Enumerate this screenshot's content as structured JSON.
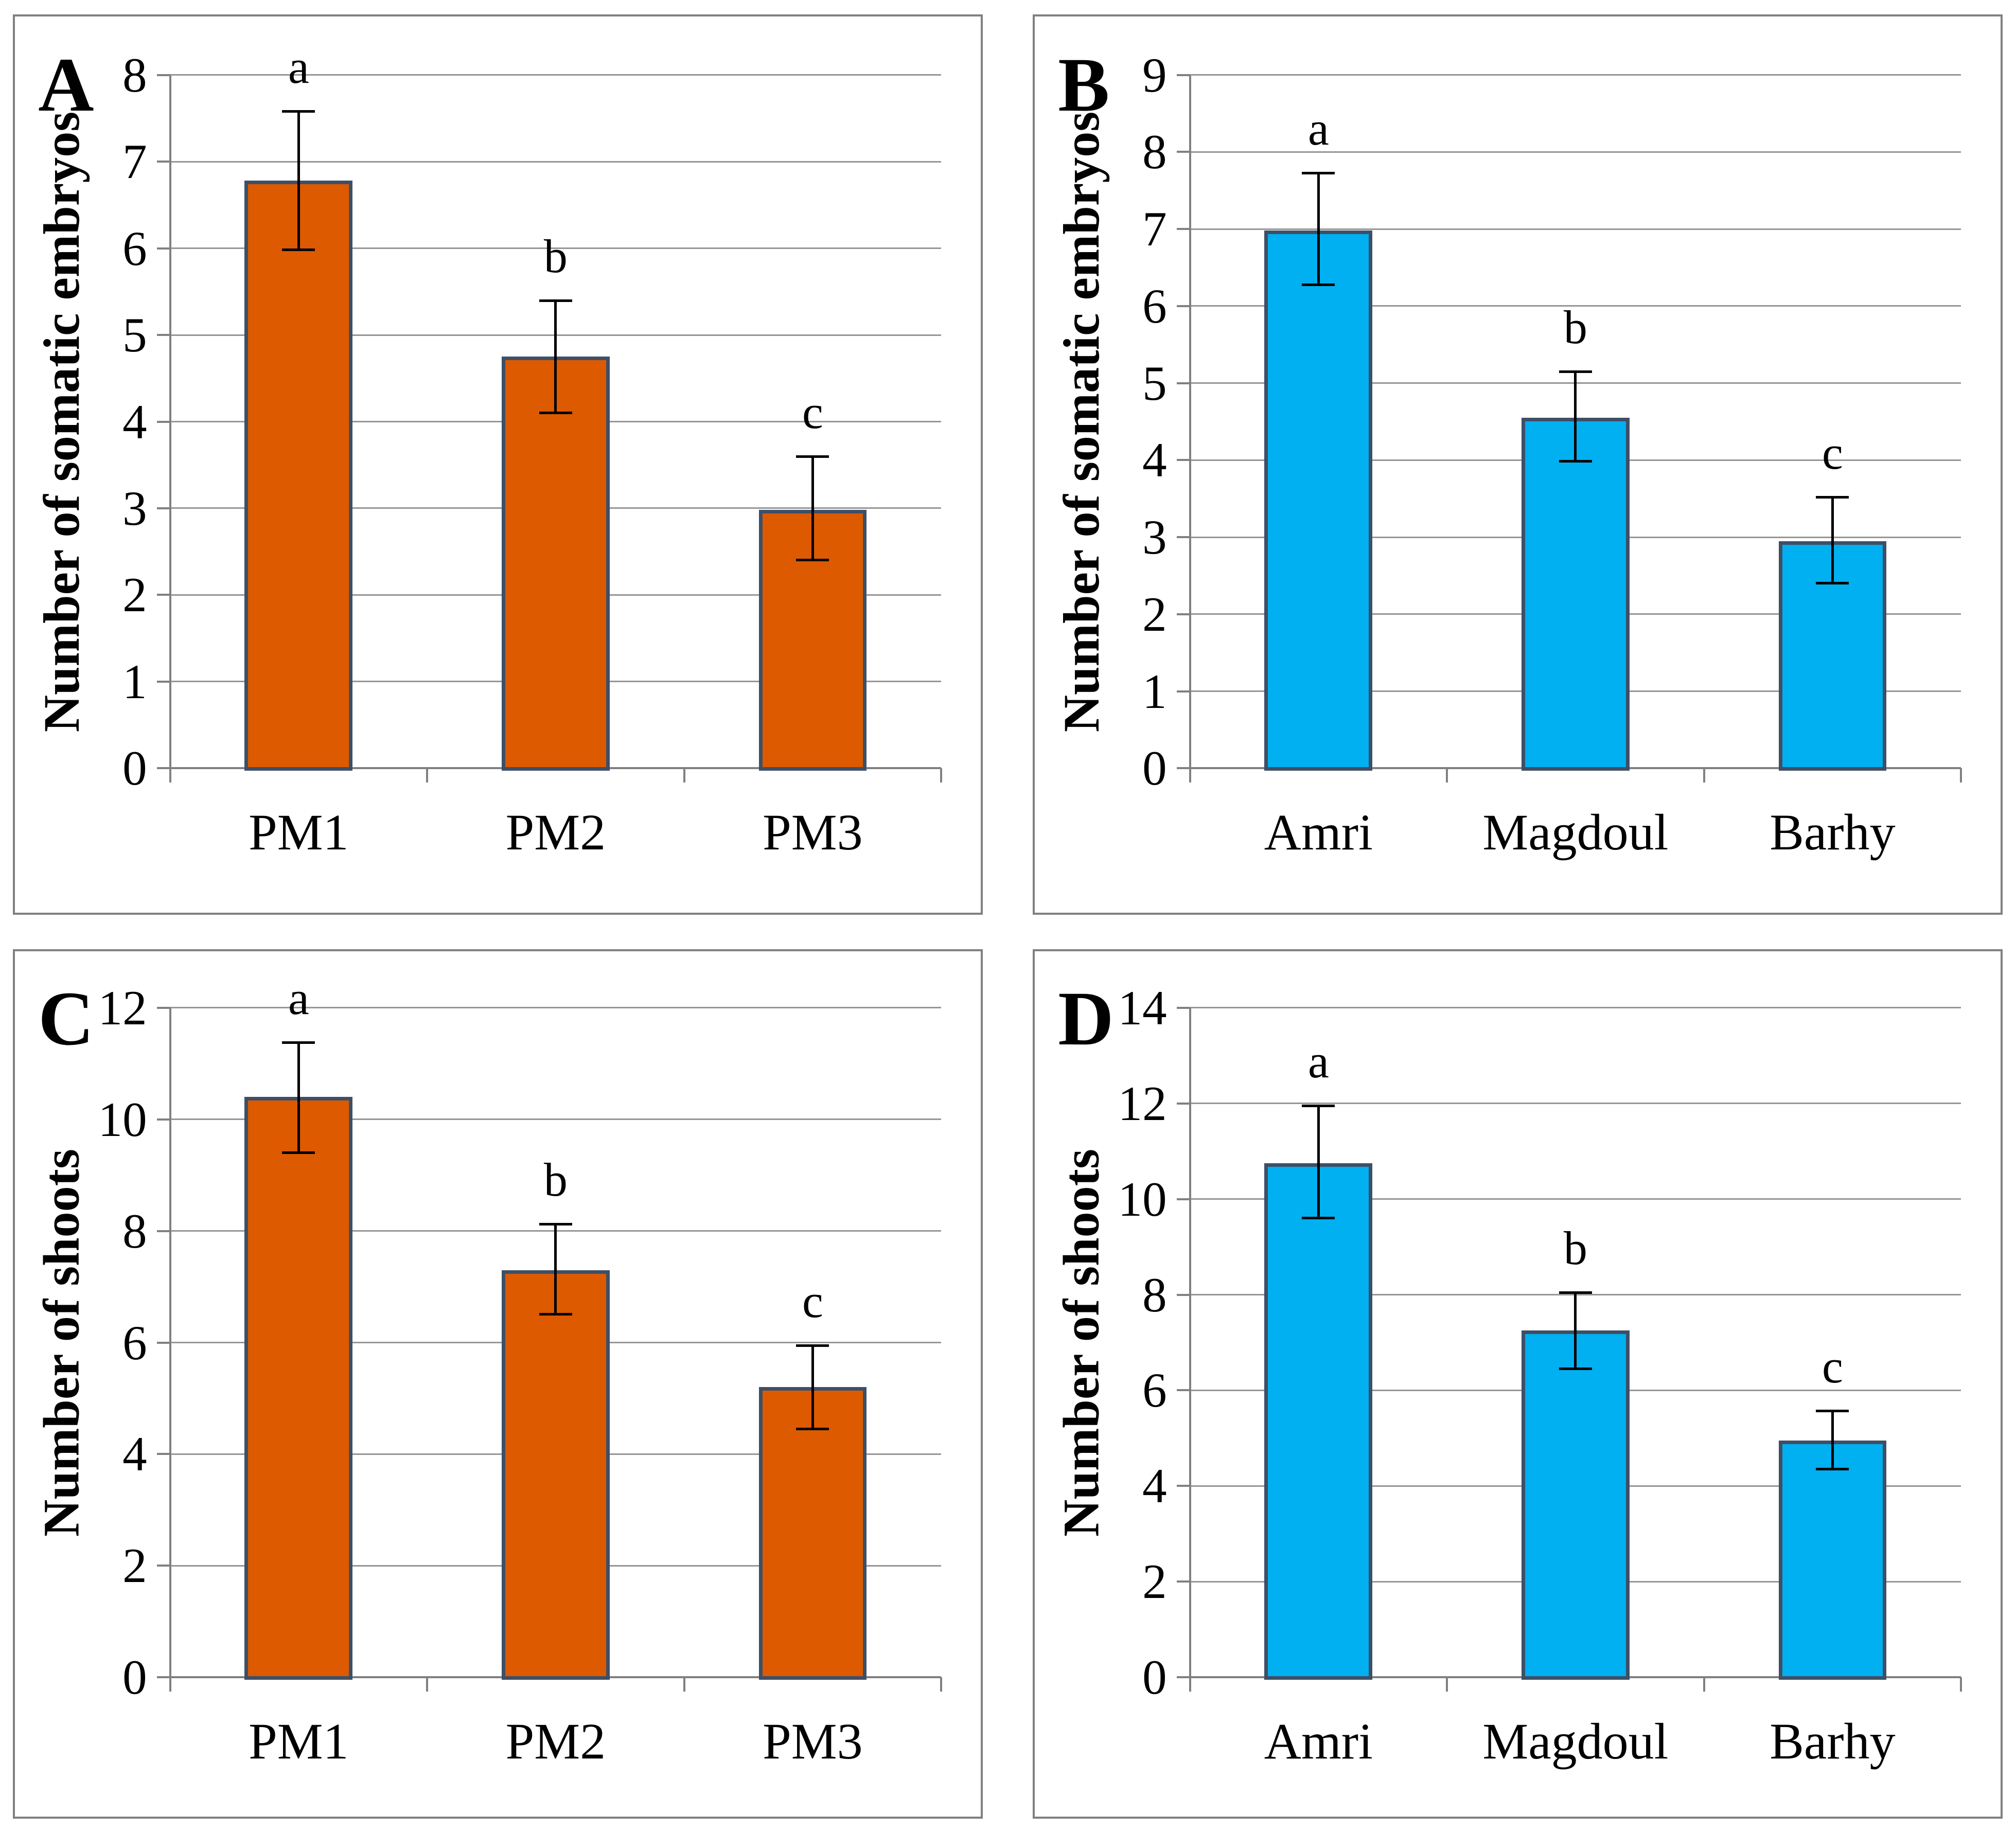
{
  "figure": {
    "description": "Four-panel bar chart figure with panels A, B, C, D",
    "background": "#FFFFFF",
    "panel_border_color": "#808080",
    "grid_color": "#969696",
    "axis_color": "#808080",
    "bar_border_color": "#3E4F66",
    "error_bar_color": "#000000",
    "text_color": "#000000",
    "orange": "#DD5A00",
    "blue": "#00B0F0"
  },
  "chart_data": [
    {
      "type": "bar",
      "panel": "A",
      "title": "",
      "xlabel": "",
      "ylabel": "Number of somatic embryos",
      "categories": [
        "PM1",
        "PM2",
        "PM3"
      ],
      "values": [
        6.78,
        4.75,
        2.98
      ],
      "error_low": [
        5.98,
        4.1,
        2.4
      ],
      "error_high": [
        7.58,
        5.4,
        3.6
      ],
      "sig_letters": [
        "a",
        "b",
        "c"
      ],
      "ylim": [
        0,
        8
      ],
      "yticks": [
        0,
        1,
        2,
        3,
        4,
        5,
        6,
        7,
        8
      ],
      "bar_color": "#DD5A00",
      "grid": true,
      "legend": "none"
    },
    {
      "type": "bar",
      "panel": "B",
      "title": "",
      "xlabel": "",
      "ylabel": "Number of somatic embryos",
      "categories": [
        "Amri",
        "Magdoul",
        "Barhy"
      ],
      "values": [
        6.98,
        4.55,
        2.95
      ],
      "error_low": [
        6.27,
        3.98,
        2.4
      ],
      "error_high": [
        7.73,
        5.15,
        3.52
      ],
      "sig_letters": [
        "a",
        "b",
        "c"
      ],
      "ylim": [
        0,
        9
      ],
      "yticks": [
        0,
        1,
        2,
        3,
        4,
        5,
        6,
        7,
        8,
        9
      ],
      "bar_color": "#00B0F0",
      "grid": true,
      "legend": "none"
    },
    {
      "type": "bar",
      "panel": "C",
      "title": "",
      "xlabel": "",
      "ylabel": "Number of shoots",
      "categories": [
        "PM1",
        "PM2",
        "PM3"
      ],
      "values": [
        10.4,
        7.3,
        5.2
      ],
      "error_low": [
        9.4,
        6.5,
        4.45
      ],
      "error_high": [
        11.38,
        8.13,
        5.95
      ],
      "sig_letters": [
        "a",
        "b",
        "c"
      ],
      "ylim": [
        0,
        12
      ],
      "yticks": [
        0,
        2,
        4,
        6,
        8,
        10,
        12
      ],
      "bar_color": "#DD5A00",
      "grid": true,
      "legend": "none"
    },
    {
      "type": "bar",
      "panel": "D",
      "title": "",
      "xlabel": "",
      "ylabel": "Number of shoots",
      "categories": [
        "Amri",
        "Magdoul",
        "Barhy"
      ],
      "values": [
        10.75,
        7.25,
        4.95
      ],
      "error_low": [
        9.6,
        6.45,
        4.35
      ],
      "error_high": [
        11.95,
        8.05,
        5.57
      ],
      "sig_letters": [
        "a",
        "b",
        "c"
      ],
      "ylim": [
        0,
        14
      ],
      "yticks": [
        0,
        2,
        4,
        6,
        8,
        10,
        12,
        14
      ],
      "bar_color": "#00B0F0",
      "grid": true,
      "legend": "none"
    }
  ]
}
